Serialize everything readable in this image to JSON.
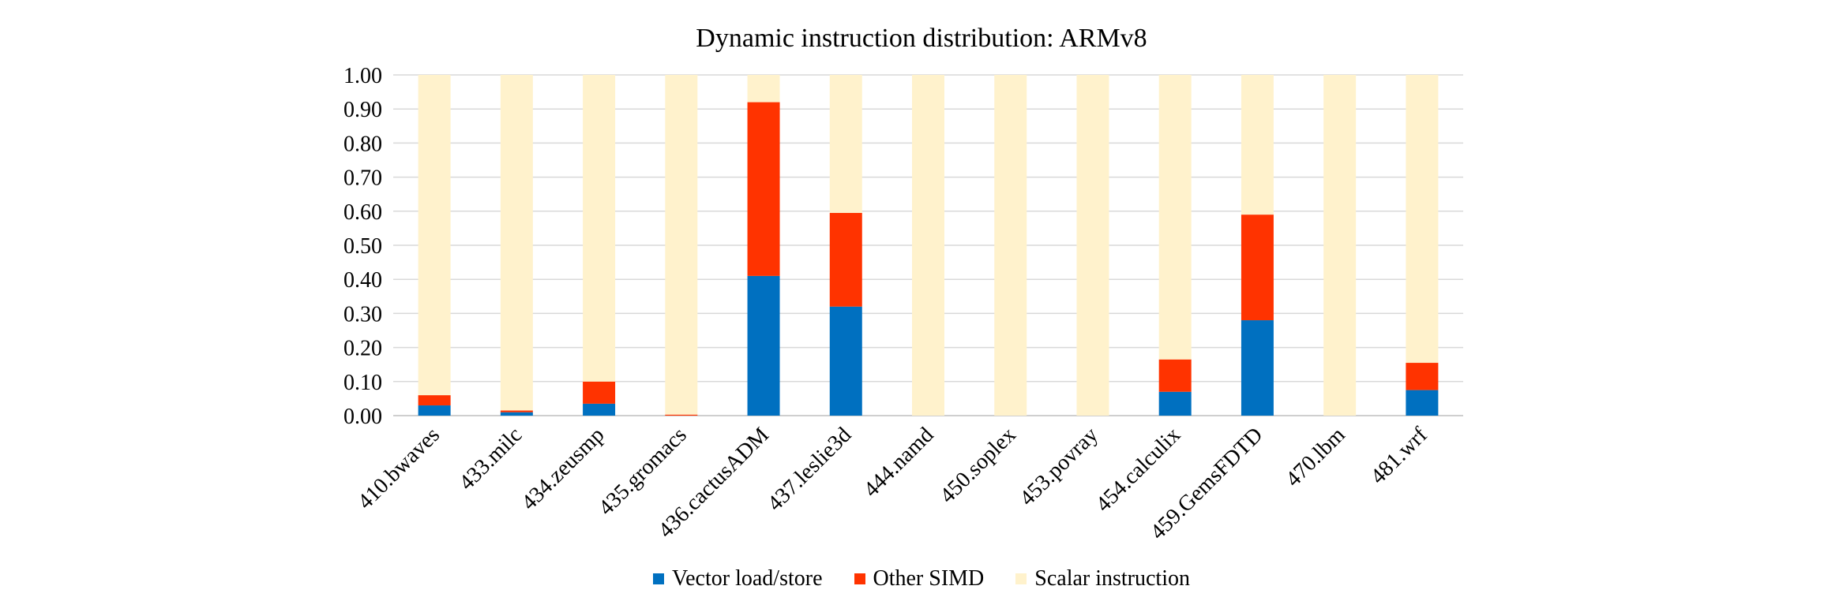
{
  "chart_data": {
    "type": "bar",
    "stacked": true,
    "title": "Dynamic instruction distribution: ARMv8",
    "xlabel": "",
    "ylabel": "",
    "ylim": [
      0,
      1
    ],
    "yticks": [
      "0.00",
      "0.10",
      "0.20",
      "0.30",
      "0.40",
      "0.50",
      "0.60",
      "0.70",
      "0.80",
      "0.90",
      "1.00"
    ],
    "grid": true,
    "legend_position": "bottom",
    "categories": [
      "410.bwaves",
      "433.milc",
      "434.zeusmp",
      "435.gromacs",
      "436.cactusADM",
      "437.leslie3d",
      "444.namd",
      "450.soplex",
      "453.povray",
      "454.calculix",
      "459.GemsFDTD",
      "470.lbm",
      "481.wrf"
    ],
    "series": [
      {
        "name": "Vector load/store",
        "color": "#0070C0",
        "values": [
          0.03,
          0.01,
          0.035,
          0.0,
          0.41,
          0.32,
          0.0,
          0.0,
          0.0,
          0.07,
          0.28,
          0.0,
          0.075
        ]
      },
      {
        "name": "Other SIMD",
        "color": "#FF3300",
        "values": [
          0.03,
          0.005,
          0.065,
          0.003,
          0.51,
          0.275,
          0.0,
          0.0,
          0.0,
          0.095,
          0.31,
          0.0,
          0.08
        ]
      },
      {
        "name": "Scalar instruction",
        "color": "#FFF2CC",
        "values": [
          0.94,
          0.985,
          0.9,
          0.997,
          0.08,
          0.405,
          1.0,
          1.0,
          1.0,
          0.835,
          0.41,
          1.0,
          0.845
        ]
      }
    ]
  }
}
